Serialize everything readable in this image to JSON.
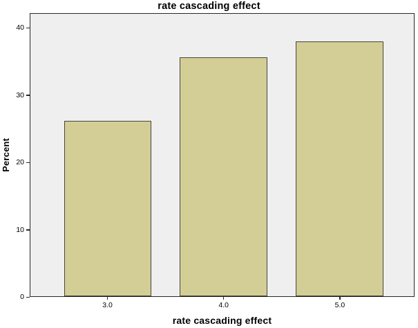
{
  "chart_data": {
    "type": "bar",
    "title": "rate cascading effect",
    "xlabel": "rate cascading effect",
    "ylabel": "Percent",
    "categories": [
      "3.0",
      "4.0",
      "5.0"
    ],
    "values": [
      26.19,
      35.71,
      38.1
    ],
    "ytick_labels": [
      "0",
      "10",
      "20",
      "30",
      "40"
    ],
    "ytick_values": [
      0,
      10,
      20,
      30,
      40
    ],
    "ylim": [
      0,
      42.2
    ],
    "grid": false,
    "legend": "none",
    "colors": {
      "bar_fill": "#d3ce96",
      "bar_border": "#45453a",
      "plot_background": "#efefef",
      "axis": "#262626",
      "text": "#000000",
      "page_background": "#ffffff"
    }
  }
}
